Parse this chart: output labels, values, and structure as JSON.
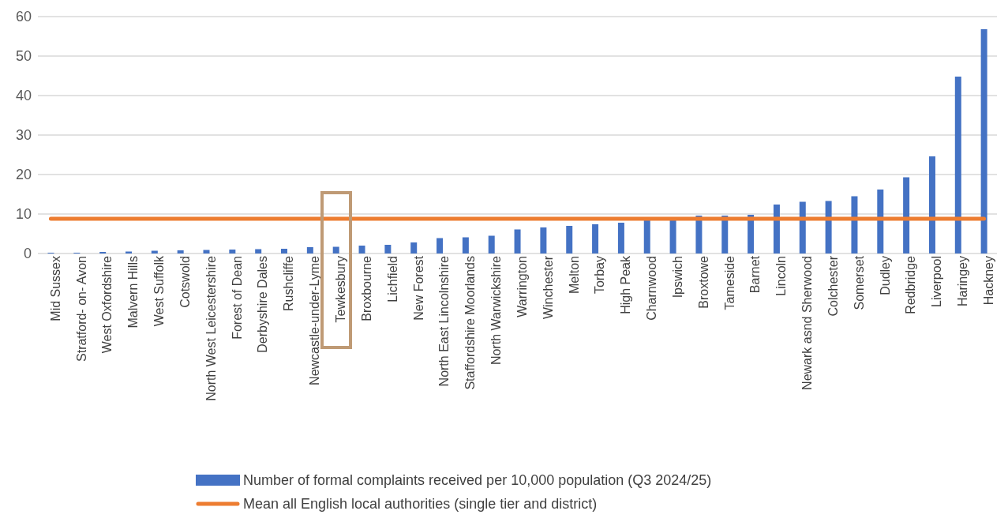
{
  "chart_data": {
    "type": "bar",
    "categories": [
      "Mid Sussex",
      "Stratford- on- Avon",
      "West Oxfordshire",
      "Malvern Hills",
      "West Suffolk",
      "Cotswold",
      "North West Leicestershire",
      "Forest of Dean",
      "Derbyshire Dales",
      "Rushcliffe",
      "Newcastle-under-Lyme",
      "Tewkesbury",
      "Broxbourne",
      "Lichfield",
      "New Forest",
      "North East Lincolnshire",
      "Staffordshire Moorlands",
      "North Warwickshire",
      "Warrington",
      "Winchester",
      "Melton",
      "Torbay",
      "High Peak",
      "Charnwood",
      "Ipswich",
      "Broxtowe",
      "Tameside",
      "Barnet",
      "Lincoln",
      "Newark asnd Sherwood",
      "Colchester",
      "Somerset",
      "Dudley",
      "Redbridge",
      "Liverpool",
      "Haringey",
      "Hackney"
    ],
    "series": [
      {
        "name": "Number of formal complaints received per 10,000 population (Q3 2024/25)",
        "color": "#4472c4",
        "values": [
          0.2,
          0.2,
          0.4,
          0.5,
          0.7,
          0.8,
          0.9,
          1.0,
          1.1,
          1.2,
          1.6,
          1.7,
          2.0,
          2.2,
          2.8,
          3.9,
          4.1,
          4.5,
          6.1,
          6.6,
          7.0,
          7.4,
          7.8,
          8.5,
          8.5,
          9.6,
          9.6,
          9.8,
          12.4,
          13.1,
          13.3,
          14.5,
          16.2,
          19.3,
          24.6,
          44.8,
          56.8
        ]
      },
      {
        "name": "Mean all English local authorities (single tier and district)",
        "type": "line",
        "color": "#ed7d31",
        "values": [
          8.8,
          8.8,
          8.8,
          8.8,
          8.8,
          8.8,
          8.8,
          8.8,
          8.8,
          8.8,
          8.8,
          8.8,
          8.8,
          8.8,
          8.8,
          8.8,
          8.8,
          8.8,
          8.8,
          8.8,
          8.8,
          8.8,
          8.8,
          8.8,
          8.8,
          8.8,
          8.8,
          8.8,
          8.8,
          8.8,
          8.8,
          8.8,
          8.8,
          8.8,
          8.8,
          8.8,
          8.8
        ]
      }
    ],
    "ylim": [
      0,
      60
    ],
    "yticks": [
      0,
      10,
      20,
      30,
      40,
      50,
      60
    ],
    "grid": "y",
    "legend": "bottom",
    "marker": "none"
  }
}
